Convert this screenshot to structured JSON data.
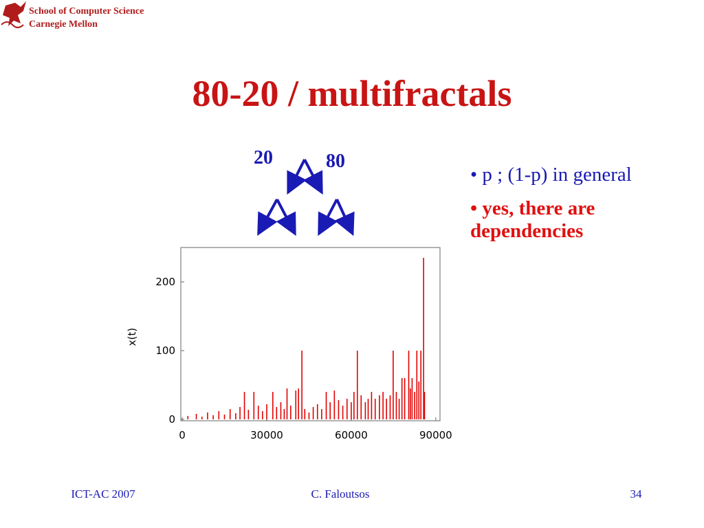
{
  "header": {
    "school": "School of Computer Science",
    "university": "Carnegie Mellon"
  },
  "title": "80-20 / multifractals",
  "tree": {
    "left_label": "20",
    "right_label": "80"
  },
  "bullets": [
    {
      "text": "p ; (1-p) in general",
      "color": "#1a1ab4"
    },
    {
      "text": "yes, there are dependencies",
      "color": "#e01010"
    }
  ],
  "chart_data": {
    "type": "bar",
    "ylabel": "x(t)",
    "color": "#e00000",
    "x": [
      2000,
      5000,
      7000,
      9000,
      11000,
      13000,
      15000,
      17000,
      19000,
      20500,
      22080,
      23500,
      25440,
      27000,
      28500,
      30000,
      32160,
      33500,
      35000,
      36200,
      37200,
      38500,
      40320,
      41280,
      42480,
      43500,
      45000,
      46500,
      48000,
      49500,
      51120,
      52500,
      54000,
      55500,
      57000,
      58500,
      60000,
      60960,
      62160,
      63500,
      65000,
      66000,
      67200,
      68500,
      70000,
      71280,
      72500,
      73800,
      74880,
      76000,
      77000,
      78000,
      78960,
      80400,
      81000,
      81600,
      82500,
      83280,
      84000,
      84720,
      85680,
      86000
    ],
    "values": [
      5,
      8,
      4,
      10,
      6,
      12,
      7,
      15,
      9,
      18,
      40,
      14,
      40,
      20,
      12,
      22,
      40,
      18,
      25,
      15,
      45,
      20,
      42,
      45,
      100,
      15,
      10,
      18,
      22,
      15,
      40,
      25,
      42,
      28,
      20,
      30,
      25,
      40,
      100,
      35,
      25,
      30,
      40,
      30,
      35,
      40,
      30,
      35,
      100,
      40,
      30,
      60,
      60,
      100,
      45,
      60,
      40,
      100,
      55,
      100,
      235,
      40
    ],
    "xlim": [
      -500,
      91500
    ],
    "ylim": [
      -2,
      250
    ],
    "xticks": [
      0,
      30000,
      60000,
      90000
    ],
    "yticks": [
      0,
      100,
      200
    ]
  },
  "footer": {
    "left": "ICT-AC 2007",
    "center": "C. Faloutsos",
    "right": "34"
  }
}
